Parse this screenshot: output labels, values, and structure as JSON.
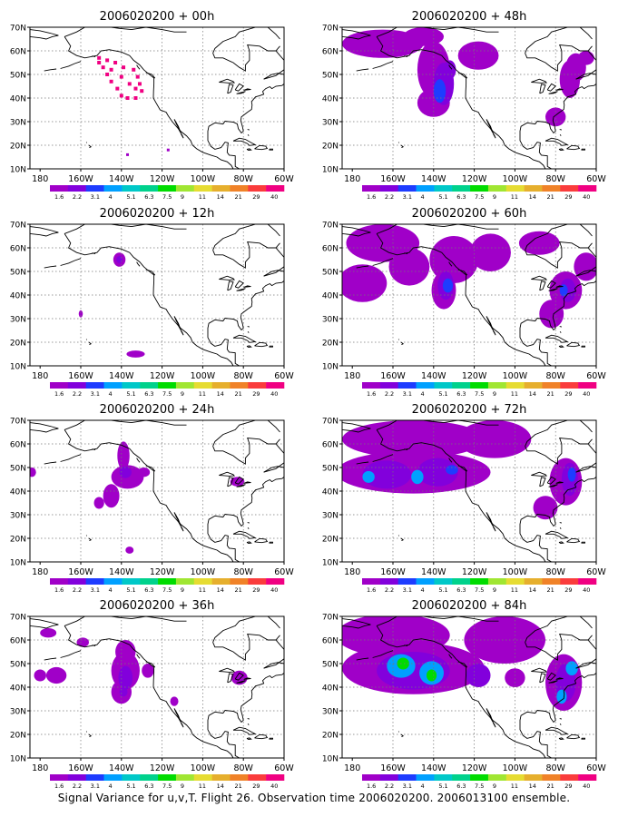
{
  "caption": "Signal Variance for u,v,T. Flight 26. Observation time 2006020200. 2006013100 ensemble.",
  "colors": {
    "land_outline": "#000000",
    "grid": "#777777",
    "map_bg": "#ffffff",
    "scale": [
      "#a000c8",
      "#8200dc",
      "#1e3cff",
      "#00a0ff",
      "#00c8c8",
      "#00d28c",
      "#00dc00",
      "#a0e632",
      "#e6dc32",
      "#e6af2d",
      "#f08228",
      "#fa3c3c",
      "#f00082"
    ]
  },
  "chart_data": [
    {
      "type": "heatmap",
      "title": "2006020200 + 00h",
      "lat_ticks": [
        "10N",
        "20N",
        "30N",
        "40N",
        "50N",
        "60N",
        "70N"
      ],
      "lon_ticks": [
        "180",
        "160W",
        "140W",
        "120W",
        "100W",
        "80W",
        "60W"
      ],
      "lat_range": [
        10,
        70
      ],
      "lon_range": [
        -185,
        -60
      ],
      "levels": [
        "1.6",
        "2.2",
        "3.1",
        "4",
        "5.1",
        "6.3",
        "7.5",
        "9",
        "11",
        "14",
        "21",
        "29",
        "40"
      ],
      "blobs": []
    },
    {
      "type": "heatmap",
      "title": "2006020200 + 12h",
      "lat_ticks": [
        "10N",
        "20N",
        "30N",
        "40N",
        "50N",
        "60N",
        "70N"
      ],
      "lon_ticks": [
        "180",
        "160W",
        "140W",
        "120W",
        "100W",
        "80W",
        "60W"
      ],
      "lat_range": [
        10,
        70
      ],
      "lon_range": [
        -185,
        -60
      ],
      "levels": [
        "1.6",
        "2.2",
        "3.1",
        "4",
        "5.1",
        "6.3",
        "7.5",
        "9",
        "11",
        "14",
        "21",
        "29",
        "40"
      ],
      "blobs": [
        {
          "lon": -141,
          "lat": 55,
          "rlon": 3,
          "rlat": 3,
          "level": 0
        },
        {
          "lon": -141,
          "lat": 55,
          "rlon": 1.5,
          "rlat": 1.5,
          "level": 1
        },
        {
          "lon": -160,
          "lat": 32,
          "rlon": 1,
          "rlat": 1.5,
          "level": 0
        },
        {
          "lon": -133,
          "lat": 15,
          "rlon": 4.5,
          "rlat": 1.5,
          "level": 0
        }
      ]
    },
    {
      "type": "heatmap",
      "title": "2006020200 + 24h",
      "lat_ticks": [
        "10N",
        "20N",
        "30N",
        "40N",
        "50N",
        "60N",
        "70N"
      ],
      "lon_ticks": [
        "180",
        "160W",
        "140W",
        "120W",
        "100W",
        "80W",
        "60W"
      ],
      "lat_range": [
        10,
        70
      ],
      "lon_range": [
        -185,
        -60
      ],
      "levels": [
        "1.6",
        "2.2",
        "3.1",
        "4",
        "5.1",
        "6.3",
        "7.5",
        "9",
        "11",
        "14",
        "21",
        "29",
        "40"
      ],
      "blobs": [
        {
          "lon": -139,
          "lat": 55,
          "rlon": 3,
          "rlat": 6,
          "level": 0
        },
        {
          "lon": -137,
          "lat": 46,
          "rlon": 8,
          "rlat": 5,
          "level": 0
        },
        {
          "lon": -145,
          "lat": 38,
          "rlon": 4,
          "rlat": 5,
          "level": 0
        },
        {
          "lon": -151,
          "lat": 35,
          "rlon": 2.5,
          "rlat": 2.5,
          "level": 0
        },
        {
          "lon": -129,
          "lat": 48,
          "rlon": 3,
          "rlat": 2,
          "level": 0
        },
        {
          "lon": -138,
          "lat": 48,
          "rlon": 3,
          "rlat": 2.5,
          "level": 1
        },
        {
          "lon": -184,
          "lat": 48,
          "rlon": 2,
          "rlat": 2,
          "level": 0
        },
        {
          "lon": -83,
          "lat": 44,
          "rlon": 3.5,
          "rlat": 2,
          "level": 0
        },
        {
          "lon": -136,
          "lat": 15,
          "rlon": 2,
          "rlat": 1.5,
          "level": 0
        }
      ]
    },
    {
      "type": "heatmap",
      "title": "2006020200 + 36h",
      "lat_ticks": [
        "10N",
        "20N",
        "30N",
        "40N",
        "50N",
        "60N",
        "70N"
      ],
      "lon_ticks": [
        "180",
        "160W",
        "140W",
        "120W",
        "100W",
        "80W",
        "60W"
      ],
      "lat_range": [
        10,
        70
      ],
      "lon_range": [
        -185,
        -60
      ],
      "levels": [
        "1.6",
        "2.2",
        "3.1",
        "4",
        "5.1",
        "6.3",
        "7.5",
        "9",
        "11",
        "14",
        "21",
        "29",
        "40"
      ],
      "blobs": [
        {
          "lon": -138,
          "lat": 55,
          "rlon": 5,
          "rlat": 5,
          "level": 0
        },
        {
          "lon": -138,
          "lat": 47,
          "rlon": 7,
          "rlat": 8,
          "level": 0
        },
        {
          "lon": -140,
          "lat": 38,
          "rlon": 5,
          "rlat": 5,
          "level": 0
        },
        {
          "lon": -138,
          "lat": 44,
          "rlon": 3.5,
          "rlat": 5,
          "level": 1
        },
        {
          "lon": -139,
          "lat": 38,
          "rlon": 2,
          "rlat": 2,
          "level": 1
        },
        {
          "lon": -172,
          "lat": 45,
          "rlon": 5,
          "rlat": 3.5,
          "level": 0
        },
        {
          "lon": -180,
          "lat": 45,
          "rlon": 3,
          "rlat": 2.5,
          "level": 0
        },
        {
          "lon": -176,
          "lat": 63,
          "rlon": 4,
          "rlat": 2,
          "level": 0
        },
        {
          "lon": -159,
          "lat": 59,
          "rlon": 3,
          "rlat": 2,
          "level": 0
        },
        {
          "lon": -127,
          "lat": 47,
          "rlon": 3,
          "rlat": 3,
          "level": 0
        },
        {
          "lon": -82,
          "lat": 44,
          "rlon": 4,
          "rlat": 3,
          "level": 0
        },
        {
          "lon": -114,
          "lat": 34,
          "rlon": 2,
          "rlat": 2,
          "level": 0
        }
      ]
    },
    {
      "type": "heatmap",
      "title": "2006020200 + 48h",
      "lat_ticks": [
        "10N",
        "20N",
        "30N",
        "40N",
        "50N",
        "60N",
        "70N"
      ],
      "lon_ticks": [
        "180",
        "160W",
        "140W",
        "120W",
        "100W",
        "80W",
        "60W"
      ],
      "lat_range": [
        10,
        70
      ],
      "lon_range": [
        -185,
        -60
      ],
      "levels": [
        "1.6",
        "2.2",
        "3.1",
        "4",
        "5.1",
        "6.3",
        "7.5",
        "9",
        "11",
        "14",
        "21",
        "29",
        "40"
      ],
      "blobs": [
        {
          "lon": -165,
          "lat": 63,
          "rlon": 20,
          "rlat": 6,
          "level": 0
        },
        {
          "lon": -145,
          "lat": 66,
          "rlon": 10,
          "rlat": 4,
          "level": 0
        },
        {
          "lon": -118,
          "lat": 58,
          "rlon": 10,
          "rlat": 6,
          "level": 0
        },
        {
          "lon": -140,
          "lat": 52,
          "rlon": 8,
          "rlat": 12,
          "level": 0
        },
        {
          "lon": -140,
          "lat": 38,
          "rlon": 8,
          "rlat": 6,
          "level": 0
        },
        {
          "lon": -135,
          "lat": 46,
          "rlon": 5,
          "rlat": 9,
          "level": 1
        },
        {
          "lon": -137,
          "lat": 43,
          "rlon": 3,
          "rlat": 5,
          "level": 2
        },
        {
          "lon": -132,
          "lat": 52,
          "rlon": 3,
          "rlat": 4,
          "level": 1
        },
        {
          "lon": -73,
          "lat": 48,
          "rlon": 5,
          "rlat": 8,
          "level": 0
        },
        {
          "lon": -80,
          "lat": 32,
          "rlon": 5,
          "rlat": 4,
          "level": 0
        },
        {
          "lon": -70,
          "lat": 53,
          "rlon": 5,
          "rlat": 6,
          "level": 0
        },
        {
          "lon": -65,
          "lat": 57,
          "rlon": 4,
          "rlat": 3,
          "level": 0
        }
      ]
    },
    {
      "type": "heatmap",
      "title": "2006020200 + 60h",
      "lat_ticks": [
        "10N",
        "20N",
        "30N",
        "40N",
        "50N",
        "60N",
        "70N"
      ],
      "lon_ticks": [
        "180",
        "160W",
        "140W",
        "120W",
        "100W",
        "80W",
        "60W"
      ],
      "lat_range": [
        10,
        70
      ],
      "lon_range": [
        -185,
        -60
      ],
      "levels": [
        "1.6",
        "2.2",
        "3.1",
        "4",
        "5.1",
        "6.3",
        "7.5",
        "9",
        "11",
        "14",
        "21",
        "29",
        "40"
      ],
      "blobs": [
        {
          "lon": -165,
          "lat": 62,
          "rlon": 18,
          "rlat": 8,
          "level": 0
        },
        {
          "lon": -175,
          "lat": 45,
          "rlon": 12,
          "rlat": 8,
          "level": 0
        },
        {
          "lon": -152,
          "lat": 52,
          "rlon": 10,
          "rlat": 8,
          "level": 0
        },
        {
          "lon": -130,
          "lat": 55,
          "rlon": 12,
          "rlat": 10,
          "level": 0
        },
        {
          "lon": -135,
          "lat": 42,
          "rlon": 6,
          "rlat": 8,
          "level": 0
        },
        {
          "lon": -134,
          "lat": 44,
          "rlon": 4,
          "rlat": 6,
          "level": 1
        },
        {
          "lon": -133,
          "lat": 44,
          "rlon": 2.5,
          "rlat": 3,
          "level": 2
        },
        {
          "lon": -112,
          "lat": 58,
          "rlon": 10,
          "rlat": 8,
          "level": 0
        },
        {
          "lon": -88,
          "lat": 62,
          "rlon": 10,
          "rlat": 5,
          "level": 0
        },
        {
          "lon": -75,
          "lat": 42,
          "rlon": 8,
          "rlat": 8,
          "level": 0
        },
        {
          "lon": -82,
          "lat": 32,
          "rlon": 6,
          "rlat": 6,
          "level": 0
        },
        {
          "lon": -74,
          "lat": 42,
          "rlon": 4,
          "rlat": 5,
          "level": 1
        },
        {
          "lon": -76,
          "lat": 42,
          "rlon": 2,
          "rlat": 2.5,
          "level": 2
        },
        {
          "lon": -65,
          "lat": 52,
          "rlon": 6,
          "rlat": 6,
          "level": 0
        }
      ]
    },
    {
      "type": "heatmap",
      "title": "2006020200 + 72h",
      "lat_ticks": [
        "10N",
        "20N",
        "30N",
        "40N",
        "50N",
        "60N",
        "70N"
      ],
      "lon_ticks": [
        "180",
        "160W",
        "140W",
        "120W",
        "100W",
        "80W",
        "60W"
      ],
      "lat_range": [
        10,
        70
      ],
      "lon_range": [
        -185,
        -60
      ],
      "levels": [
        "1.6",
        "2.2",
        "3.1",
        "4",
        "5.1",
        "6.3",
        "7.5",
        "9",
        "11",
        "14",
        "21",
        "29",
        "40"
      ],
      "blobs": [
        {
          "lon": -150,
          "lat": 62,
          "rlon": 35,
          "rlat": 8,
          "level": 0
        },
        {
          "lon": -150,
          "lat": 48,
          "rlon": 38,
          "rlat": 9,
          "level": 0
        },
        {
          "lon": -110,
          "lat": 62,
          "rlon": 18,
          "rlat": 8,
          "level": 0
        },
        {
          "lon": -163,
          "lat": 47,
          "rlon": 12,
          "rlat": 6,
          "level": 1
        },
        {
          "lon": -138,
          "lat": 48,
          "rlon": 10,
          "rlat": 6,
          "level": 1
        },
        {
          "lon": -172,
          "lat": 46,
          "rlon": 3,
          "rlat": 2.5,
          "level": 3
        },
        {
          "lon": -148,
          "lat": 46,
          "rlon": 3,
          "rlat": 3,
          "level": 3
        },
        {
          "lon": -131,
          "lat": 49,
          "rlon": 3,
          "rlat": 2,
          "level": 2
        },
        {
          "lon": -75,
          "lat": 44,
          "rlon": 8,
          "rlat": 10,
          "level": 0
        },
        {
          "lon": -85,
          "lat": 33,
          "rlon": 6,
          "rlat": 5,
          "level": 0
        },
        {
          "lon": -73,
          "lat": 45,
          "rlon": 4,
          "rlat": 7,
          "level": 1
        },
        {
          "lon": -72,
          "lat": 47,
          "rlon": 2,
          "rlat": 3,
          "level": 2
        }
      ]
    },
    {
      "type": "heatmap",
      "title": "2006020200 + 84h",
      "lat_ticks": [
        "10N",
        "20N",
        "30N",
        "40N",
        "50N",
        "60N",
        "70N"
      ],
      "lon_ticks": [
        "180",
        "160W",
        "140W",
        "120W",
        "100W",
        "80W",
        "60W"
      ],
      "lat_range": [
        10,
        70
      ],
      "lon_range": [
        -185,
        -60
      ],
      "levels": [
        "1.6",
        "2.2",
        "3.1",
        "4",
        "5.1",
        "6.3",
        "7.5",
        "9",
        "11",
        "14",
        "21",
        "29",
        "40"
      ],
      "blobs": [
        {
          "lon": -160,
          "lat": 62,
          "rlon": 28,
          "rlat": 9,
          "level": 0
        },
        {
          "lon": -150,
          "lat": 48,
          "rlon": 35,
          "rlat": 11,
          "level": 0
        },
        {
          "lon": -105,
          "lat": 60,
          "rlon": 20,
          "rlat": 10,
          "level": 0
        },
        {
          "lon": -150,
          "lat": 47,
          "rlon": 18,
          "rlat": 8,
          "level": 1
        },
        {
          "lon": -156,
          "lat": 49,
          "rlon": 7,
          "rlat": 5,
          "level": 3
        },
        {
          "lon": -141,
          "lat": 46,
          "rlon": 6,
          "rlat": 5,
          "level": 3
        },
        {
          "lon": -155,
          "lat": 50,
          "rlon": 3,
          "rlat": 2.5,
          "level": 6
        },
        {
          "lon": -141,
          "lat": 45,
          "rlon": 2.5,
          "rlat": 2.5,
          "level": 6
        },
        {
          "lon": -118,
          "lat": 45,
          "rlon": 6,
          "rlat": 5,
          "level": 1
        },
        {
          "lon": -76,
          "lat": 42,
          "rlon": 9,
          "rlat": 12,
          "level": 0
        },
        {
          "lon": -75,
          "lat": 42,
          "rlon": 5,
          "rlat": 8,
          "level": 1
        },
        {
          "lon": -77,
          "lat": 36,
          "rlon": 2.5,
          "rlat": 3,
          "level": 3
        },
        {
          "lon": -72,
          "lat": 48,
          "rlon": 3,
          "rlat": 3,
          "level": 3
        },
        {
          "lon": -100,
          "lat": 44,
          "rlon": 5,
          "rlat": 4,
          "level": 0
        }
      ]
    }
  ]
}
